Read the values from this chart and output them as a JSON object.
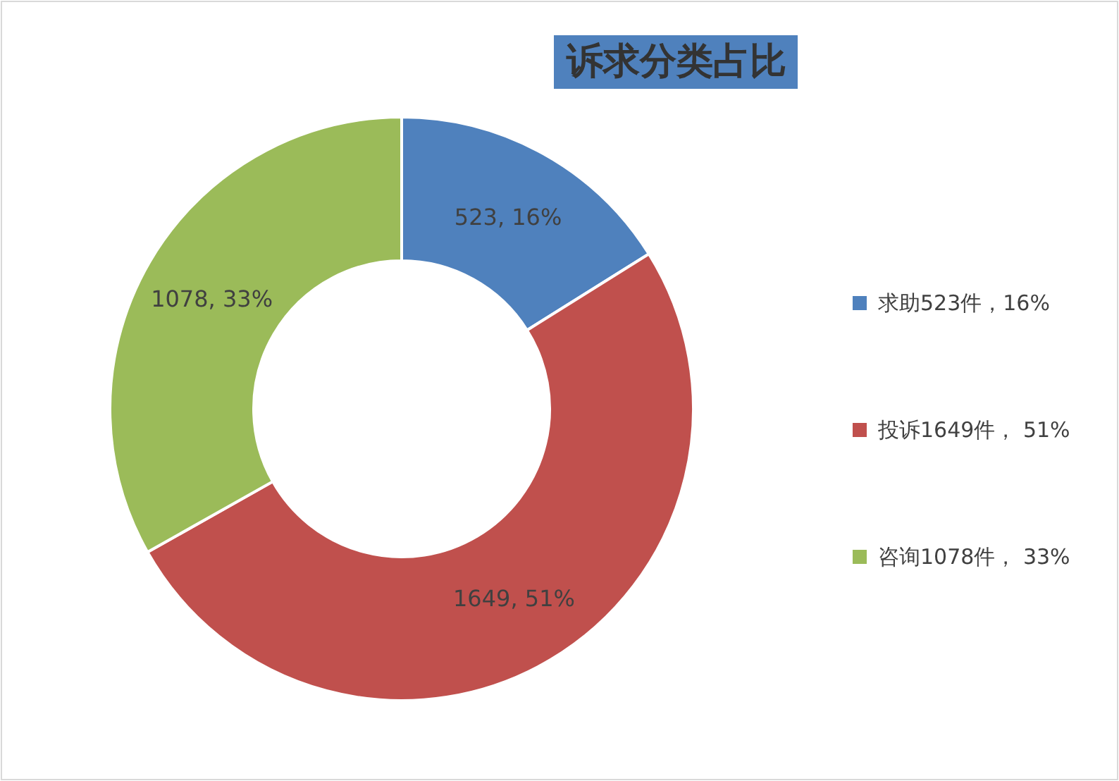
{
  "chart_data": {
    "type": "donut",
    "title": "诉求分类占比",
    "categories": [
      "求助523件，16%",
      "投诉1649件， 51%",
      "咨询1078件， 33%"
    ],
    "values": [
      523,
      1649,
      1078
    ],
    "value_labels": [
      "523, 16%",
      "1649, 51%",
      "1078, 33%"
    ],
    "colors": [
      "#4f81bd",
      "#c0504d",
      "#9bbb59"
    ],
    "legend": "right"
  }
}
